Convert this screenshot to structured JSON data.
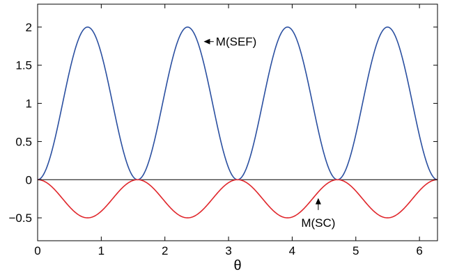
{
  "chart_data": {
    "type": "line",
    "xlabel": "θ",
    "ylabel": "",
    "xlim": [
      0,
      6.2832
    ],
    "ylim": [
      -0.8,
      2.3
    ],
    "xticks": [
      0,
      1,
      2,
      3,
      4,
      5,
      6
    ],
    "xtick_labels": [
      "0",
      "1",
      "2",
      "3",
      "4",
      "5",
      "6"
    ],
    "yticks": [
      -0.5,
      0,
      0.5,
      1,
      1.5,
      2
    ],
    "ytick_labels": [
      "−0.5",
      "0",
      "0.5",
      "1",
      "1.5",
      "2"
    ],
    "grid": false,
    "zero_line": true,
    "series": [
      {
        "name": "M(SEF)",
        "color": "#2a4fa0",
        "x": [
          0,
          0.1963,
          0.3927,
          0.589,
          0.7854,
          0.9817,
          1.1781,
          1.3744,
          1.5708,
          1.7671,
          1.9635,
          2.1598,
          2.3562,
          2.5525,
          2.7489,
          2.9452,
          3.1416,
          3.3379,
          3.5343,
          3.7306,
          3.927,
          4.1233,
          4.3197,
          4.516,
          4.7124,
          4.9087,
          5.1051,
          5.3014,
          5.4978,
          5.6941,
          5.8905,
          6.0868,
          6.2832
        ],
        "y": [
          0,
          0.293,
          1.0,
          1.707,
          2.0,
          1.707,
          1.0,
          0.293,
          0,
          0.293,
          1.0,
          1.707,
          2.0,
          1.707,
          1.0,
          0.293,
          0,
          0.293,
          1.0,
          1.707,
          2.0,
          1.707,
          1.0,
          0.293,
          0,
          0.293,
          1.0,
          1.707,
          2.0,
          1.707,
          1.0,
          0.293,
          0
        ]
      },
      {
        "name": "M(SC)",
        "color": "#e0262b",
        "x": [
          0,
          0.1963,
          0.3927,
          0.589,
          0.7854,
          0.9817,
          1.1781,
          1.3744,
          1.5708,
          1.7671,
          1.9635,
          2.1598,
          2.3562,
          2.5525,
          2.7489,
          2.9452,
          3.1416,
          3.3379,
          3.5343,
          3.7306,
          3.927,
          4.1233,
          4.3197,
          4.516,
          4.7124,
          4.9087,
          5.1051,
          5.3014,
          5.4978,
          5.6941,
          5.8905,
          6.0868,
          6.2832
        ],
        "y": [
          0,
          -0.073,
          -0.25,
          -0.427,
          -0.5,
          -0.427,
          -0.25,
          -0.073,
          0,
          -0.073,
          -0.25,
          -0.427,
          -0.5,
          -0.427,
          -0.25,
          -0.073,
          0,
          -0.073,
          -0.25,
          -0.427,
          -0.5,
          -0.427,
          -0.25,
          -0.073,
          0,
          -0.073,
          -0.25,
          -0.427,
          -0.5,
          -0.427,
          -0.25,
          -0.073,
          0
        ]
      }
    ],
    "annotations": [
      {
        "text": "M(SEF)",
        "arrow_to": [
          2.61,
          1.81
        ],
        "text_at": [
          2.8,
          1.81
        ]
      },
      {
        "text": "M(SC)",
        "arrow_to": [
          4.41,
          -0.24
        ],
        "text_at": [
          4.41,
          -0.58
        ]
      }
    ]
  }
}
